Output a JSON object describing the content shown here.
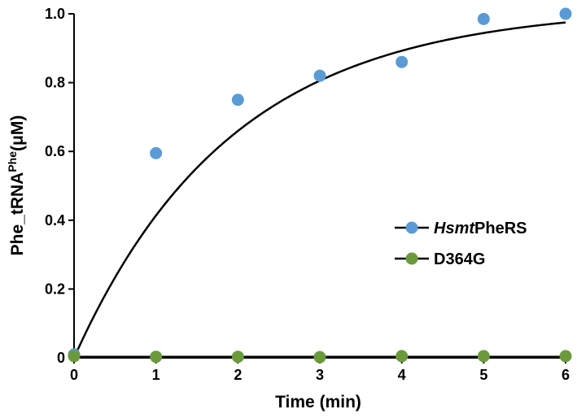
{
  "chart_data": {
    "type": "scatter",
    "xlabel": "Time (min)",
    "ylabel": {
      "base": "Phe_tRNA",
      "sup": "Phe",
      "unit": "(μM)"
    },
    "xlim": [
      0,
      6
    ],
    "ylim": [
      0,
      1.0
    ],
    "x_ticks": [
      "0",
      "1",
      "2",
      "3",
      "4",
      "5",
      "6"
    ],
    "y_ticks": [
      "0",
      "0.2",
      "0.4",
      "0.6",
      "0.8",
      "1.0"
    ],
    "grid": false,
    "legend_position": "right",
    "series": [
      {
        "name_italic": "Hsmt",
        "name_rest": "PheRS",
        "color": "#5b9bd5",
        "x": [
          0,
          1,
          2,
          3,
          4,
          5,
          6
        ],
        "y": [
          0.01,
          0.595,
          0.75,
          0.82,
          0.86,
          0.985,
          1.0
        ],
        "fit": {
          "type": "single-exponential",
          "amplitude": 1.02,
          "rate": 0.52
        }
      },
      {
        "name": "D364G",
        "color": "#6b9a3c",
        "x": [
          0,
          1,
          2,
          3,
          4,
          5,
          6
        ],
        "y": [
          0.005,
          0.003,
          0.003,
          0.002,
          0.005,
          0.005,
          0.005
        ],
        "fit": {
          "type": "linear",
          "value": 0.003
        }
      }
    ]
  }
}
